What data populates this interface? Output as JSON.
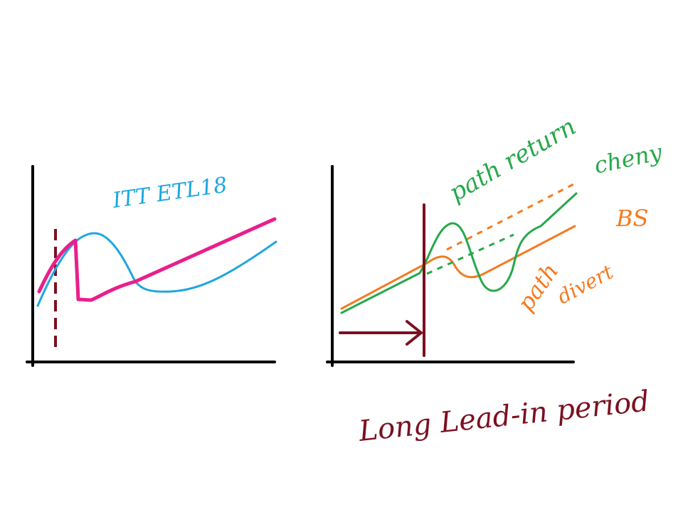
{
  "colors": {
    "axis": "#000000",
    "marker": "#7a1020",
    "blue": "#1ea6e0",
    "magenta": "#e81f8c",
    "green": "#26a84a",
    "orange": "#f47a20"
  },
  "left_panel": {
    "label": "ITT ETL18"
  },
  "right_panel": {
    "label_green_top": "path return",
    "label_green_right": "cheny",
    "label_orange_right": "BS",
    "label_orange_bottom_1": "path",
    "label_orange_bottom_2": "divert"
  },
  "caption": "Long Lead-in period"
}
